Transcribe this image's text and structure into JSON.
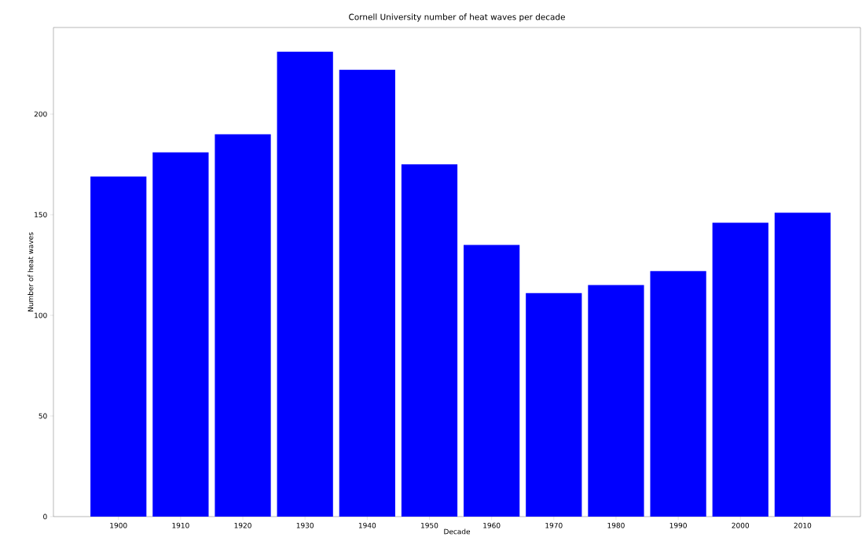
{
  "chart_data": {
    "type": "bar",
    "title": "Cornell University number of heat waves per decade",
    "xlabel": "Decade",
    "ylabel": "Number of heat waves",
    "categories": [
      "1900",
      "1910",
      "1920",
      "1930",
      "1940",
      "1950",
      "1960",
      "1970",
      "1980",
      "1990",
      "2000",
      "2010"
    ],
    "values": [
      169,
      181,
      190,
      231,
      222,
      175,
      135,
      111,
      115,
      122,
      146,
      151
    ],
    "color": "#0000ff",
    "ylim": [
      0,
      243
    ],
    "yticks": [
      0,
      50,
      100,
      150,
      200
    ]
  }
}
